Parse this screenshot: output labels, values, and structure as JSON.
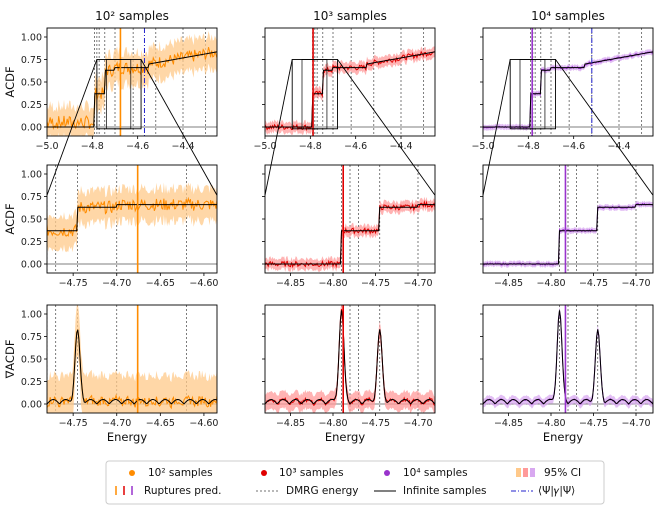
{
  "chart_data": {
    "type": "line",
    "columns": [
      {
        "key": "c0",
        "title": "10² samples",
        "color": "#ff8c00",
        "fill": "#ffc98a"
      },
      {
        "key": "c1",
        "title": "10³ samples",
        "color": "#e00000",
        "fill": "#ff9a9a"
      },
      {
        "key": "c2",
        "title": "10⁴ samples",
        "color": "#9933cc",
        "fill": "#d8a8f0"
      }
    ],
    "rows": [
      {
        "key": "r0",
        "ylabel": "ACDF",
        "yticks": [
          "0.00",
          "0.25",
          "0.50",
          "0.75",
          "1.00"
        ],
        "ylim": [
          -0.1,
          1.1
        ]
      },
      {
        "key": "r1",
        "ylabel": "ACDF",
        "yticks": [
          "0.00",
          "0.25",
          "0.50",
          "0.75",
          "1.00"
        ],
        "ylim": [
          -0.1,
          1.1
        ]
      },
      {
        "key": "r2",
        "ylabel": "∇ACDF",
        "yticks": [
          "0.00",
          "0.25",
          "0.50",
          "0.75",
          "1.00"
        ],
        "ylim": [
          -0.1,
          1.1
        ]
      }
    ],
    "xlabel": "Energy",
    "row0_xlim": [
      -5.0,
      -4.25
    ],
    "row0_xticks": [
      "−5.0",
      "−4.8",
      "−4.6",
      "−4.4"
    ],
    "row0_xtick_values": [
      -5.0,
      -4.8,
      -4.6,
      -4.4
    ],
    "zoom_xlim": [
      [
        -4.78,
        -4.585
      ],
      [
        -4.88,
        -4.68
      ],
      [
        -4.88,
        -4.68
      ]
    ],
    "zoom_xticks": [
      {
        "labels": [
          "−4.75",
          "−4.70",
          "−4.65",
          "−4.60"
        ],
        "values": [
          -4.75,
          -4.7,
          -4.65,
          -4.6
        ]
      },
      {
        "labels": [
          "−4.85",
          "−4.80",
          "−4.75",
          "−4.70"
        ],
        "values": [
          -4.85,
          -4.8,
          -4.75,
          -4.7
        ]
      },
      {
        "labels": [
          "−4.85",
          "−4.80",
          "−4.75",
          "−4.70"
        ],
        "values": [
          -4.85,
          -4.8,
          -4.75,
          -4.7
        ]
      }
    ],
    "dmrg_energies": [
      -4.79,
      -4.78,
      -4.77,
      -4.745,
      -4.7,
      -4.62,
      -4.52,
      -4.4,
      -4.3
    ],
    "rupture_pred": [
      -4.676,
      -4.788,
      -4.783
    ],
    "expectation_energy": [
      -4.57,
      null,
      -4.52
    ],
    "legend": {
      "s100": "10² samples",
      "s1000": "10³ samples",
      "s10000": "10⁴ samples",
      "ci": "95%  CI",
      "rupt": "Ruptures pred.",
      "dmrg": "DMRG energy",
      "inf": "Infinite samples",
      "expect": "⟨Ψ|𝛾|Ψ⟩"
    }
  }
}
